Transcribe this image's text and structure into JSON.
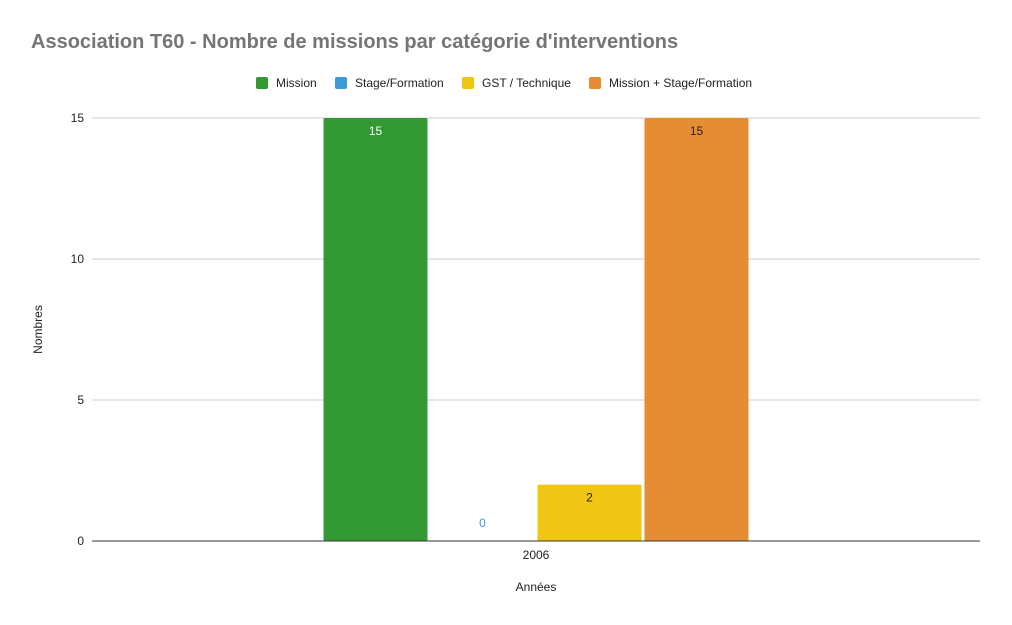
{
  "chart_data": {
    "type": "bar",
    "title": "Association T60 - Nombre de missions par catégorie d'interventions",
    "xlabel": "Années",
    "ylabel": "Nombres",
    "categories": [
      "2006"
    ],
    "ylim": [
      0,
      15
    ],
    "yticks": [
      "0",
      "5",
      "10",
      "15"
    ],
    "grid": true,
    "legend_position": "top",
    "series": [
      {
        "name": "Mission",
        "values": [
          15
        ],
        "color": "#339933",
        "label_color": "#ffffff"
      },
      {
        "name": "Stage/Formation",
        "values": [
          0
        ],
        "color": "#3b9bd8",
        "label_color": "#3b9bd8"
      },
      {
        "name": "GST / Technique",
        "values": [
          2
        ],
        "color": "#f0c514",
        "label_color": "#222222"
      },
      {
        "name": "Mission + Stage/Formation",
        "values": [
          15
        ],
        "color": "#e68c33",
        "label_color": "#222222"
      }
    ]
  }
}
